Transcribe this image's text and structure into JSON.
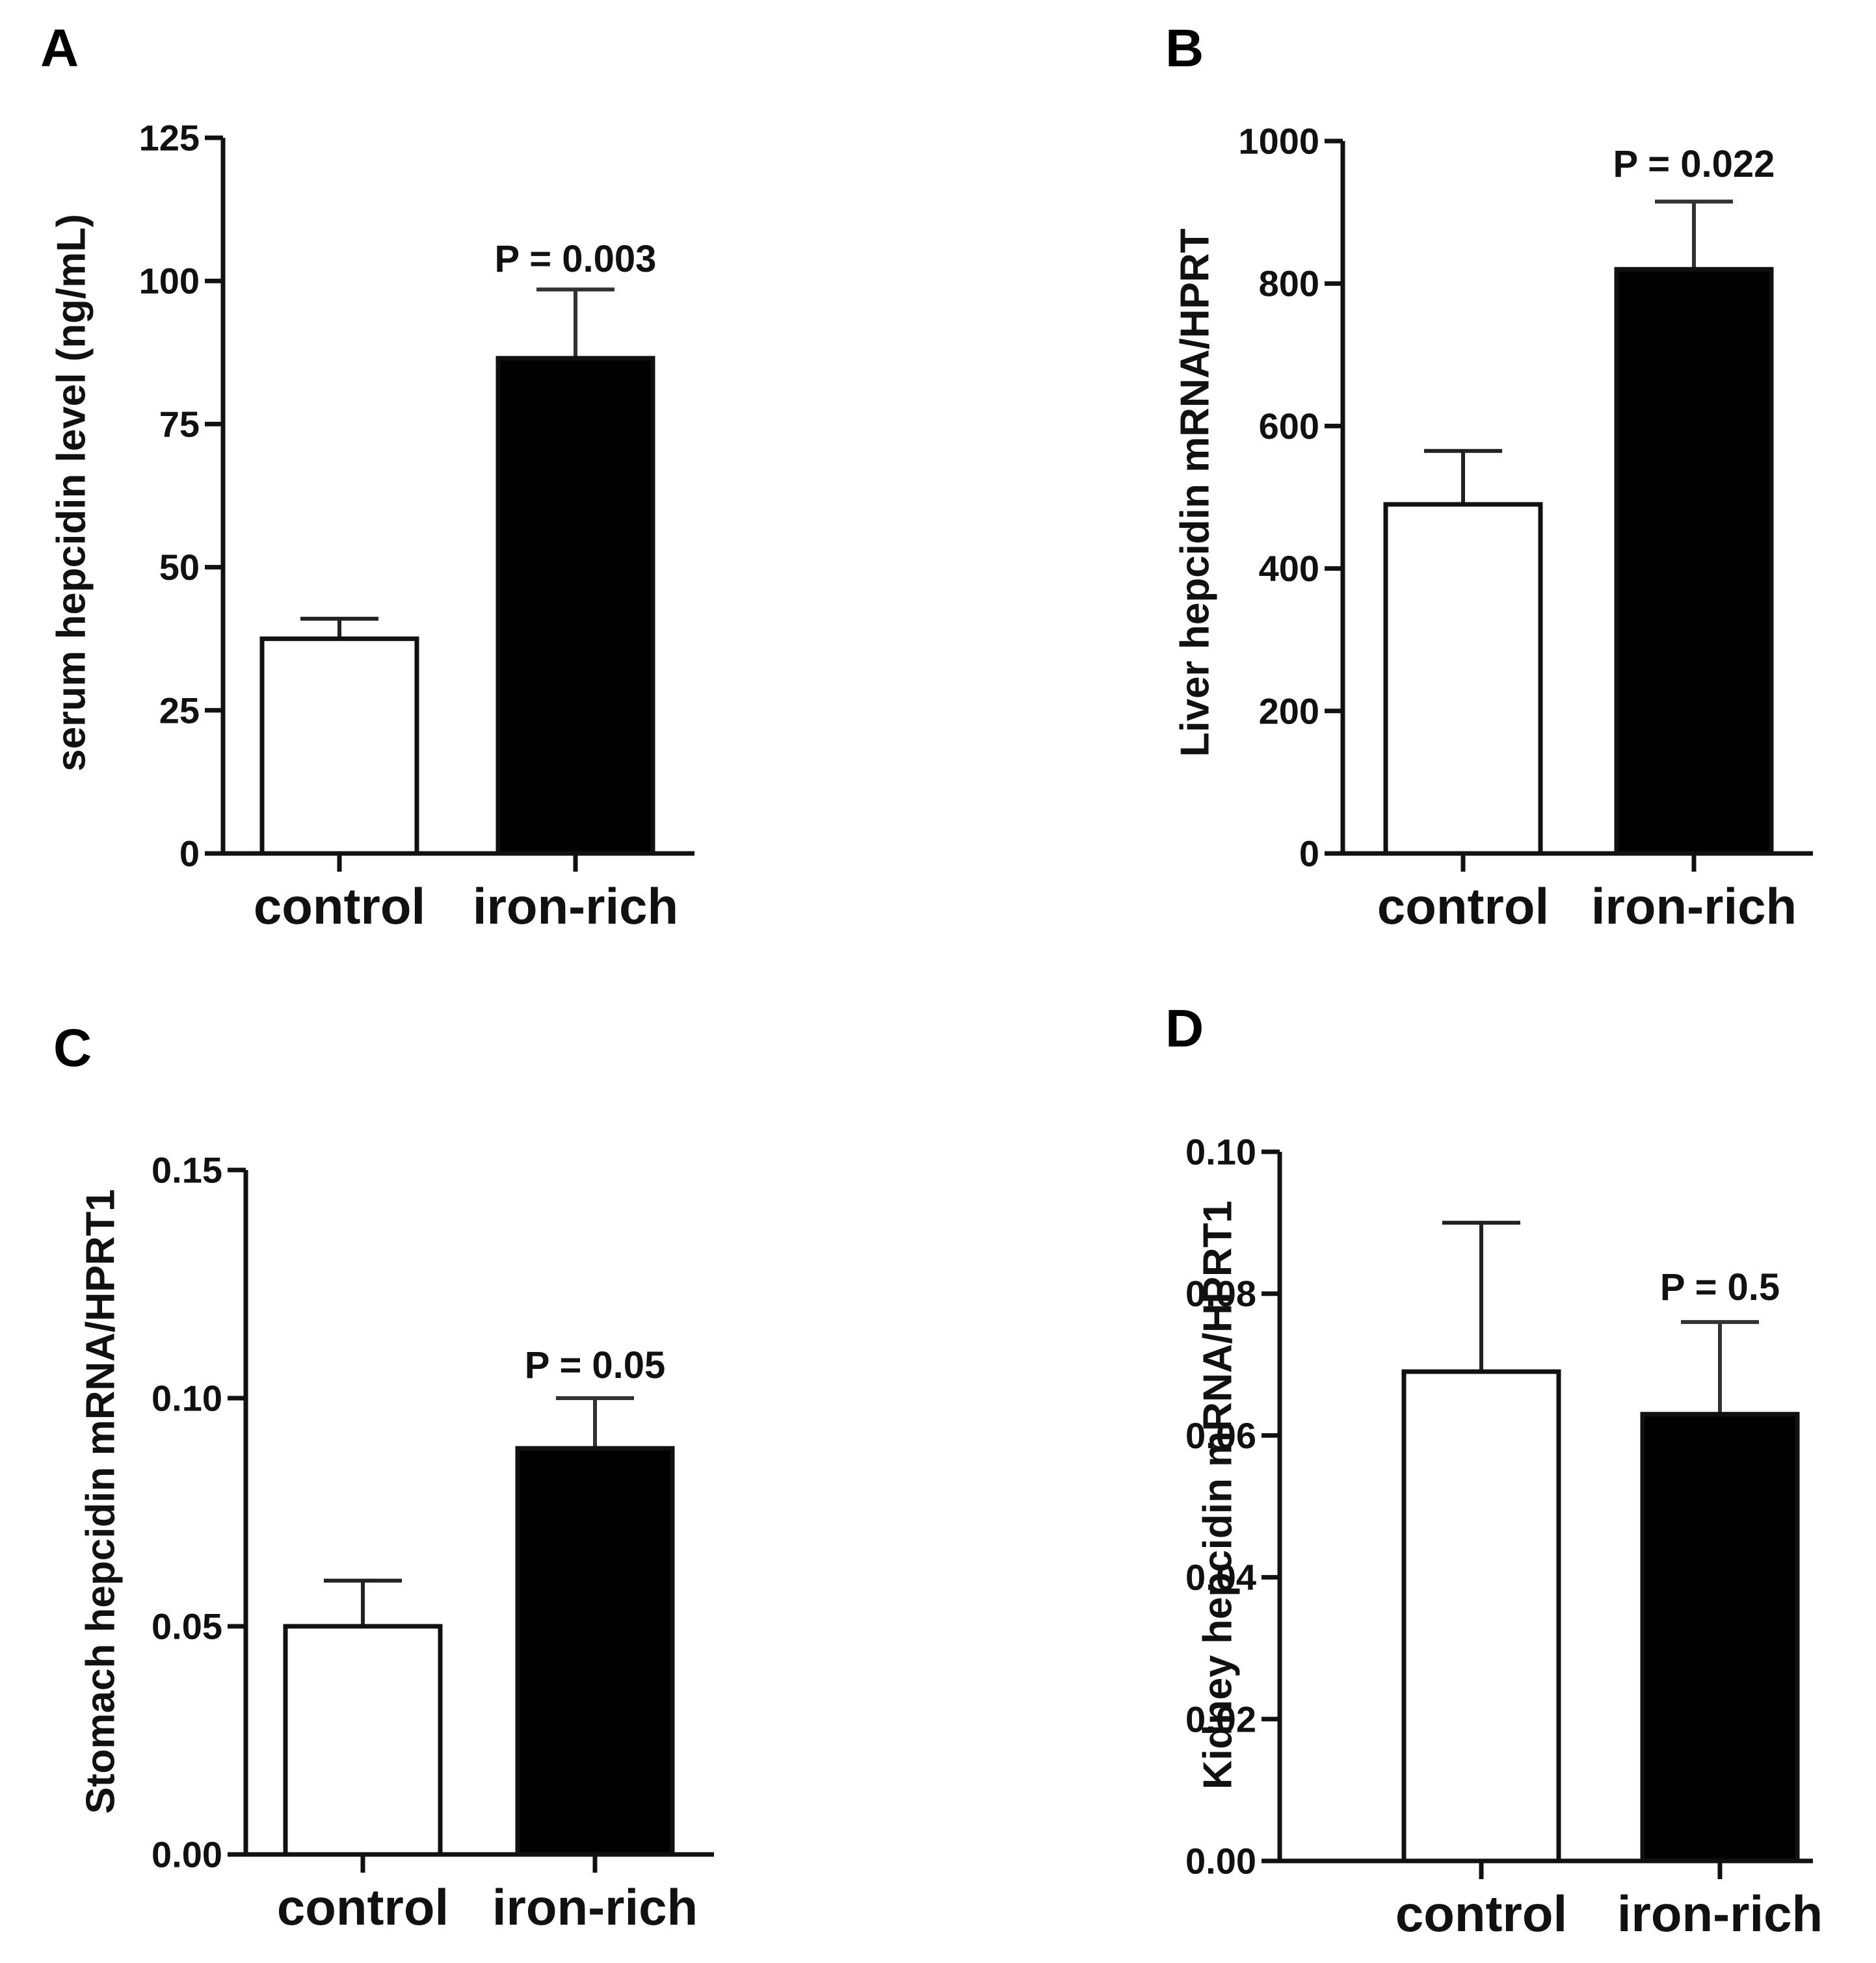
{
  "figure": {
    "colors": {
      "axis": "#111111",
      "control_fill": "#ffffff",
      "iron_fill": "#000000",
      "control_error": "#222222",
      "iron_error": "#333333"
    }
  },
  "chart_data": [
    {
      "panel": "A",
      "type": "bar",
      "categories": [
        "control",
        "iron-rich"
      ],
      "values": [
        37.5,
        86.5
      ],
      "errors": [
        3.5,
        12.0
      ],
      "ylabel": "serum hepcidin level (ng/mL)",
      "xlabel": "",
      "ylim": [
        0,
        125
      ],
      "yticks": [
        0,
        25,
        50,
        75,
        100,
        125
      ],
      "ytick_labels": [
        "0",
        "25",
        "50",
        "75",
        "100",
        "125"
      ],
      "annotation": "P = 0.003",
      "annotation_category": "iron-rich",
      "grid": false
    },
    {
      "panel": "B",
      "type": "bar",
      "categories": [
        "control",
        "iron-rich"
      ],
      "values": [
        490,
        820
      ],
      "errors": [
        75,
        95
      ],
      "ylabel": "Liver hepcidin mRNA/HPRT",
      "xlabel": "",
      "ylim": [
        0,
        1000
      ],
      "yticks": [
        0,
        200,
        400,
        600,
        800,
        1000
      ],
      "ytick_labels": [
        "0",
        "200",
        "400",
        "600",
        "800",
        "1000"
      ],
      "annotation": "P = 0.022",
      "annotation_category": "iron-rich",
      "grid": false
    },
    {
      "panel": "C",
      "type": "bar",
      "categories": [
        "control",
        "iron-rich"
      ],
      "values": [
        0.05,
        0.089
      ],
      "errors": [
        0.01,
        0.011
      ],
      "ylabel": "Stomach hepcidin mRNA/HPRT1",
      "xlabel": "",
      "ylim": [
        0,
        0.15
      ],
      "yticks": [
        0,
        0.05,
        0.1,
        0.15
      ],
      "ytick_labels": [
        "0.00",
        "0.05",
        "0.10",
        "0.15"
      ],
      "annotation": "P = 0.05",
      "annotation_category": "iron-rich",
      "grid": false
    },
    {
      "panel": "D",
      "type": "bar",
      "categories": [
        "control",
        "iron-rich"
      ],
      "values": [
        0.069,
        0.063
      ],
      "errors": [
        0.021,
        0.013
      ],
      "ylabel": "Kidney hepcidin mRNA/HPRT1",
      "xlabel": "",
      "ylim": [
        0,
        0.1
      ],
      "yticks": [
        0,
        0.02,
        0.04,
        0.06,
        0.08,
        0.1
      ],
      "ytick_labels": [
        "0.00",
        "0.02",
        "0.04",
        "0.06",
        "0.08",
        "0.10"
      ],
      "annotation": "P = 0.5",
      "annotation_category": "iron-rich",
      "grid": false
    }
  ]
}
